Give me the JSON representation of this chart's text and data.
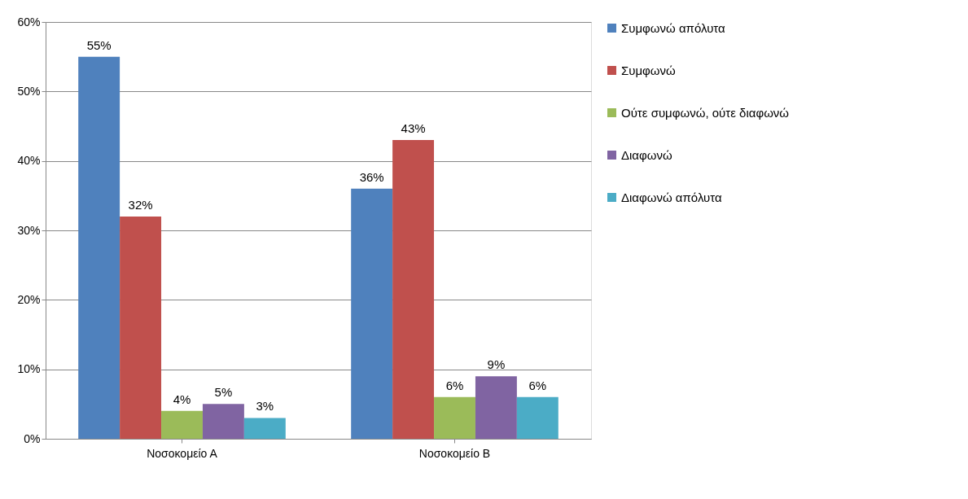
{
  "chart_data": {
    "type": "bar",
    "categories": [
      "Νοσοκομείο Α",
      "Νοσοκομείο Β"
    ],
    "series": [
      {
        "name": "Συμφωνώ απόλυτα",
        "color": "#4f81bd",
        "values": [
          55,
          36
        ],
        "value_labels": [
          "55%",
          "36%"
        ]
      },
      {
        "name": "Συμφωνώ",
        "color": "#c0504d",
        "values": [
          32,
          43
        ],
        "value_labels": [
          "32%",
          "43%"
        ]
      },
      {
        "name": "Ούτε συμφωνώ, ούτε διαφωνώ",
        "color": "#9bbb59",
        "values": [
          4,
          6
        ],
        "value_labels": [
          "4%",
          "6%"
        ]
      },
      {
        "name": "Διαφωνώ",
        "color": "#8064a2",
        "values": [
          5,
          9
        ],
        "value_labels": [
          "5%",
          "9%"
        ]
      },
      {
        "name": "Διαφωνώ απόλυτα",
        "color": "#4bacc6",
        "values": [
          3,
          6
        ],
        "value_labels": [
          "3%",
          "6%"
        ]
      }
    ],
    "ylim": [
      0,
      60
    ],
    "yticks": [
      {
        "value": 0,
        "label": "0%"
      },
      {
        "value": 10,
        "label": "10%"
      },
      {
        "value": 20,
        "label": "20%"
      },
      {
        "value": 30,
        "label": "30%"
      },
      {
        "value": 40,
        "label": "40%"
      },
      {
        "value": 50,
        "label": "50%"
      },
      {
        "value": 60,
        "label": "60%"
      }
    ],
    "grid": "y",
    "legend": "right"
  }
}
